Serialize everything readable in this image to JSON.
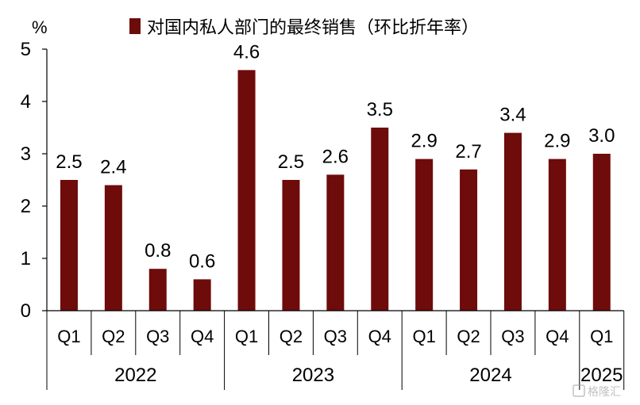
{
  "chart_data": {
    "type": "bar",
    "title": "",
    "legend": {
      "entries": [
        "对国内私人部门的最终销售（环比折年率）"
      ],
      "position": "top"
    },
    "ylabel": "%",
    "ylim": [
      0,
      5
    ],
    "yticks": [
      "0",
      "1",
      "2",
      "3",
      "4",
      "5"
    ],
    "grid": false,
    "bar_color": "#6e0b0b",
    "years": [
      {
        "label": "2022",
        "quarters": [
          "Q1",
          "Q2",
          "Q3",
          "Q4"
        ]
      },
      {
        "label": "2023",
        "quarters": [
          "Q1",
          "Q2",
          "Q3",
          "Q4"
        ]
      },
      {
        "label": "2024",
        "quarters": [
          "Q1",
          "Q2",
          "Q3",
          "Q4"
        ]
      },
      {
        "label": "2025",
        "quarters": [
          "Q1"
        ]
      }
    ],
    "categories": [
      "2022 Q1",
      "2022 Q2",
      "2022 Q3",
      "2022 Q4",
      "2023 Q1",
      "2023 Q2",
      "2023 Q3",
      "2023 Q4",
      "2024 Q1",
      "2024 Q2",
      "2024 Q3",
      "2024 Q4",
      "2025 Q1"
    ],
    "series": [
      {
        "name": "对国内私人部门的最终销售（环比折年率）",
        "values": [
          2.5,
          2.4,
          0.8,
          0.6,
          4.6,
          2.5,
          2.6,
          3.5,
          2.9,
          2.7,
          3.4,
          2.9,
          3.0
        ],
        "labels": [
          "2.5",
          "2.4",
          "0.8",
          "0.6",
          "4.6",
          "2.5",
          "2.6",
          "3.5",
          "2.9",
          "2.7",
          "3.4",
          "2.9",
          "3.0"
        ]
      }
    ]
  },
  "watermark": "格隆汇"
}
